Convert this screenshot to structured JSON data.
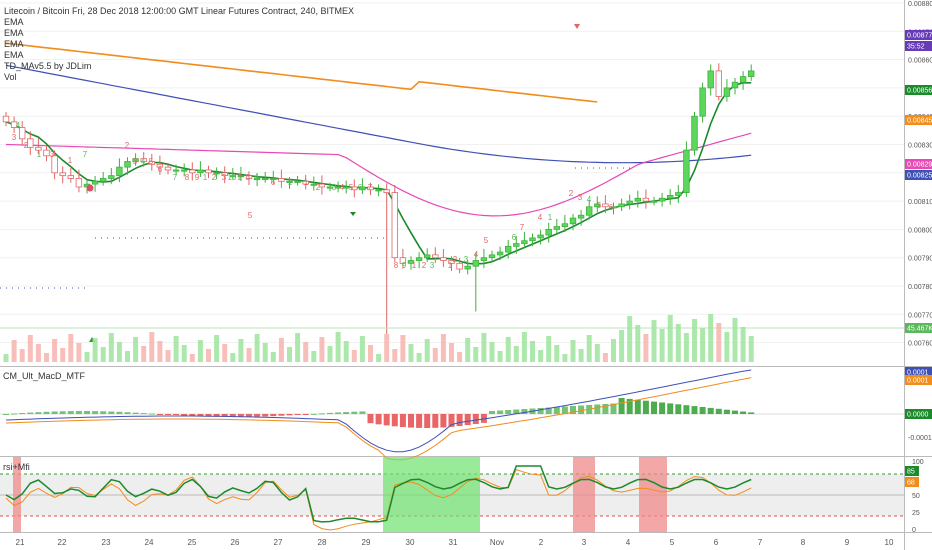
{
  "header": {
    "title": "Litecoin / Bitcoin Fri, 28 Dec 2018 12:00:00 GMT Linear Futures Contract, 240, BITMEX",
    "studies": [
      "EMA",
      "EMA",
      "EMA",
      "EMA",
      "TD_MAv5.5 by JDLim",
      "Vol"
    ]
  },
  "macd_pane": {
    "title": "CM_Ult_MacD_MTF"
  },
  "rsi_pane": {
    "title": "rsi+Mfi"
  },
  "price_axis": {
    "ticks": [
      "0.00880",
      "0.00870",
      "0.00860",
      "0.00850",
      "0.00840",
      "0.00830",
      "0.00820",
      "0.00810",
      "0.00800",
      "0.00790",
      "0.00780",
      "0.00770",
      "0.00760"
    ],
    "badges": [
      {
        "label": "0.00877",
        "color": "#673ab7"
      },
      {
        "label": "35:52",
        "color": "#673ab7"
      },
      {
        "label": "0.00856",
        "color": "#1b8a2b"
      },
      {
        "label": "0.00845",
        "color": "#f28c1a"
      },
      {
        "label": "0.00829",
        "color": "#e64ab5"
      },
      {
        "label": "0.00825",
        "color": "#3f51b5"
      },
      {
        "label": "45.467K",
        "color": "#5cb85c"
      }
    ]
  },
  "macd_axis": {
    "ticks": [
      "0.0000",
      "-0.0001"
    ],
    "badges": [
      {
        "label": "0.0001",
        "color": "#3f51b5"
      },
      {
        "label": "0.0001",
        "color": "#f28c1a"
      },
      {
        "label": "0.0000",
        "color": "#1b8a2b"
      }
    ]
  },
  "rsi_axis": {
    "ticks": [
      "100",
      "50",
      "25",
      "0"
    ],
    "badges": [
      {
        "label": "85",
        "color": "#1b8a2b"
      },
      {
        "label": "68",
        "color": "#f28c1a"
      }
    ]
  },
  "time_axis": {
    "labels": [
      "21",
      "22",
      "23",
      "24",
      "25",
      "26",
      "27",
      "28",
      "29",
      "30",
      "31",
      "Nov",
      "2",
      "3",
      "4",
      "5",
      "6",
      "7",
      "8",
      "9",
      "10"
    ]
  },
  "td_annotations": [
    "4",
    "3",
    "2",
    "1",
    "3",
    "1",
    "7",
    "2",
    "3",
    "4",
    "5",
    "6",
    "7",
    "8",
    "9",
    "1",
    "2",
    "3",
    "13",
    "2",
    "3",
    "4",
    "5",
    "6",
    "1",
    "1",
    "2",
    "3",
    "4",
    "5",
    "6",
    "7",
    "8",
    "9",
    "1",
    "2",
    "3",
    "1",
    "2",
    "3",
    "4",
    "5",
    "6",
    "7",
    "4",
    "1",
    "2",
    "3",
    "4",
    "5",
    "6"
  ],
  "colors": {
    "up": "#5cd65c",
    "down": "#f28b82",
    "ema_green": "#1b8a2b",
    "ema_orange": "#f28c1a",
    "ema_pink": "#e64ab5",
    "ema_blue": "#3f51b5"
  }
}
